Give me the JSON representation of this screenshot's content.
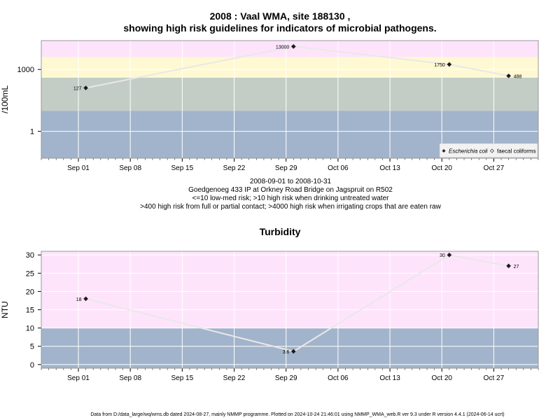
{
  "colors": {
    "band_low": "#a2b4cb",
    "band_mid": "#c3cdc6",
    "band_high": "#fef9d2",
    "band_top": "#fde4fb",
    "line": "#e8e8e8",
    "marker": "#1a1a1a",
    "grid": "#ffffff"
  },
  "x_ticks": [
    "Sep 01",
    "Sep 08",
    "Sep 15",
    "Sep 22",
    "Sep 29",
    "Oct 06",
    "Oct 13",
    "Oct 20",
    "Oct 27"
  ],
  "chart_data": [
    {
      "type": "line",
      "title": "2008 : Vaal WMA, site 188130 ,",
      "subtitle": "showing high risk guidelines for indicators of microbial pathogens.",
      "ylabel": "/100mL",
      "yscale": "log",
      "ylim": [
        0.05,
        25000
      ],
      "yticks": [
        "1",
        "1000"
      ],
      "xlim": [
        "2008-08-27",
        "2008-11-02"
      ],
      "grid": true,
      "legend_position": "bottom-right",
      "series": [
        {
          "name": "Escherichia coli",
          "x": [
            "2008-09-02",
            "2008-09-30",
            "2008-10-21",
            "2008-10-29"
          ],
          "values": [
            127,
            13000,
            1750,
            488
          ],
          "labels": [
            "127",
            "13000",
            "1750",
            "488"
          ]
        }
      ],
      "legend": [
        "Escherichia coli",
        "faecal coliforms"
      ],
      "bands": [
        {
          "from": 0.05,
          "to": 10,
          "color": "#a2b4cb"
        },
        {
          "from": 10,
          "to": 400,
          "color": "#c3cdc6"
        },
        {
          "from": 400,
          "to": 4000,
          "color": "#fef9d2"
        },
        {
          "from": 4000,
          "to": 25000,
          "color": "#fde4fb"
        }
      ],
      "caption": [
        "2008-09-01 to 2008-10-31",
        "Goedgenoeg 433 IP at Orkney Road Bridge on Jagspruit on R502",
        "<=10 low-med risk; >10 high risk when drinking untreated water",
        ">400 high risk from full or partial contact; >4000 high risk when irrigating crops that are eaten raw"
      ]
    },
    {
      "type": "line",
      "title": "Turbidity",
      "ylabel": "NTU",
      "ylim": [
        -1,
        31
      ],
      "yticks": [
        0,
        5,
        10,
        15,
        20,
        25,
        30
      ],
      "xlim": [
        "2008-08-27",
        "2008-11-02"
      ],
      "grid": true,
      "series": [
        {
          "x": [
            "2008-09-02",
            "2008-09-30",
            "2008-10-21",
            "2008-10-29"
          ],
          "values": [
            18,
            3.6,
            30,
            27
          ],
          "labels": [
            "18",
            "3.6",
            "30",
            "27"
          ]
        }
      ],
      "bands": [
        {
          "from": -1,
          "to": 10,
          "color": "#a2b4cb"
        },
        {
          "from": 10,
          "to": 31,
          "color": "#fde4fb"
        }
      ]
    }
  ],
  "footer": "Data from D:/data_large/wq/wms.db dated 2024-08-27, mainly NMMP programme. Plotted on 2024-10-24 21:46:01 using NMMP_WMA_web.R ver 9.3 under R version 4.4.1 (2024-06-14 ucrt)"
}
